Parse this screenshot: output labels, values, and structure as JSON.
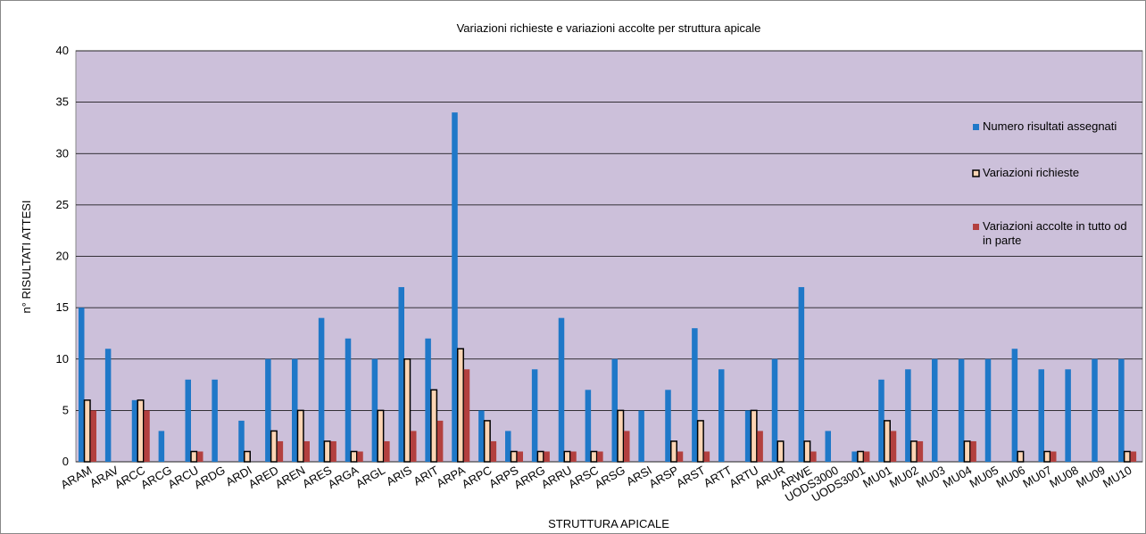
{
  "chart_data": {
    "type": "bar",
    "title": "Variazioni richieste e variazioni accolte per struttura apicale",
    "x_label": "STRUTTURA APICALE",
    "y_label": "n° RISULTATI ATTESI",
    "categories": [
      "ARAM",
      "ARAV",
      "ARCC",
      "ARCG",
      "ARCU",
      "ARDG",
      "ARDI",
      "ARED",
      "AREN",
      "ARES",
      "ARGA",
      "ARGL",
      "ARIS",
      "ARIT",
      "ARPA",
      "ARPC",
      "ARPS",
      "ARRG",
      "ARRU",
      "ARSC",
      "ARSG",
      "ARSI",
      "ARSP",
      "ARST",
      "ARTT",
      "ARTU",
      "ARUR",
      "ARWE",
      "UODS3000",
      "UODS3001",
      "MU01",
      "MU02",
      "MU03",
      "MU04",
      "MU05",
      "MU06",
      "MU07",
      "MU08",
      "MU09",
      "MU10"
    ],
    "series": [
      {
        "name": "Numero risultati assegnati",
        "color": "#1f78c8",
        "values": [
          15,
          11,
          6,
          3,
          8,
          8,
          4,
          10,
          10,
          14,
          12,
          10,
          17,
          12,
          34,
          5,
          3,
          9,
          14,
          7,
          10,
          5,
          7,
          13,
          9,
          5,
          10,
          17,
          3,
          1,
          8,
          9,
          10,
          10,
          10,
          11,
          9,
          9,
          10,
          10
        ]
      },
      {
        "name": "Variazioni richieste",
        "color": "#fcd5b4",
        "values": [
          6,
          0,
          6,
          0,
          1,
          0,
          1,
          3,
          5,
          2,
          1,
          5,
          10,
          7,
          11,
          4,
          1,
          1,
          1,
          1,
          5,
          0,
          2,
          4,
          0,
          5,
          2,
          2,
          0,
          1,
          4,
          2,
          0,
          2,
          0,
          1,
          1,
          0,
          0,
          1
        ]
      },
      {
        "name": "Variazioni accolte in tutto od in parte",
        "color": "#b3403f",
        "values": [
          5,
          0,
          5,
          0,
          1,
          0,
          0,
          2,
          2,
          2,
          1,
          2,
          3,
          4,
          9,
          2,
          1,
          1,
          1,
          1,
          3,
          0,
          1,
          1,
          0,
          3,
          0,
          1,
          0,
          1,
          3,
          2,
          0,
          2,
          0,
          0,
          1,
          0,
          0,
          1
        ]
      }
    ],
    "ylim": [
      0,
      40
    ],
    "yticks": [
      0,
      5,
      10,
      15,
      20,
      25,
      30,
      35,
      40
    ],
    "grid": true,
    "plot_color": "#ccc0da"
  }
}
